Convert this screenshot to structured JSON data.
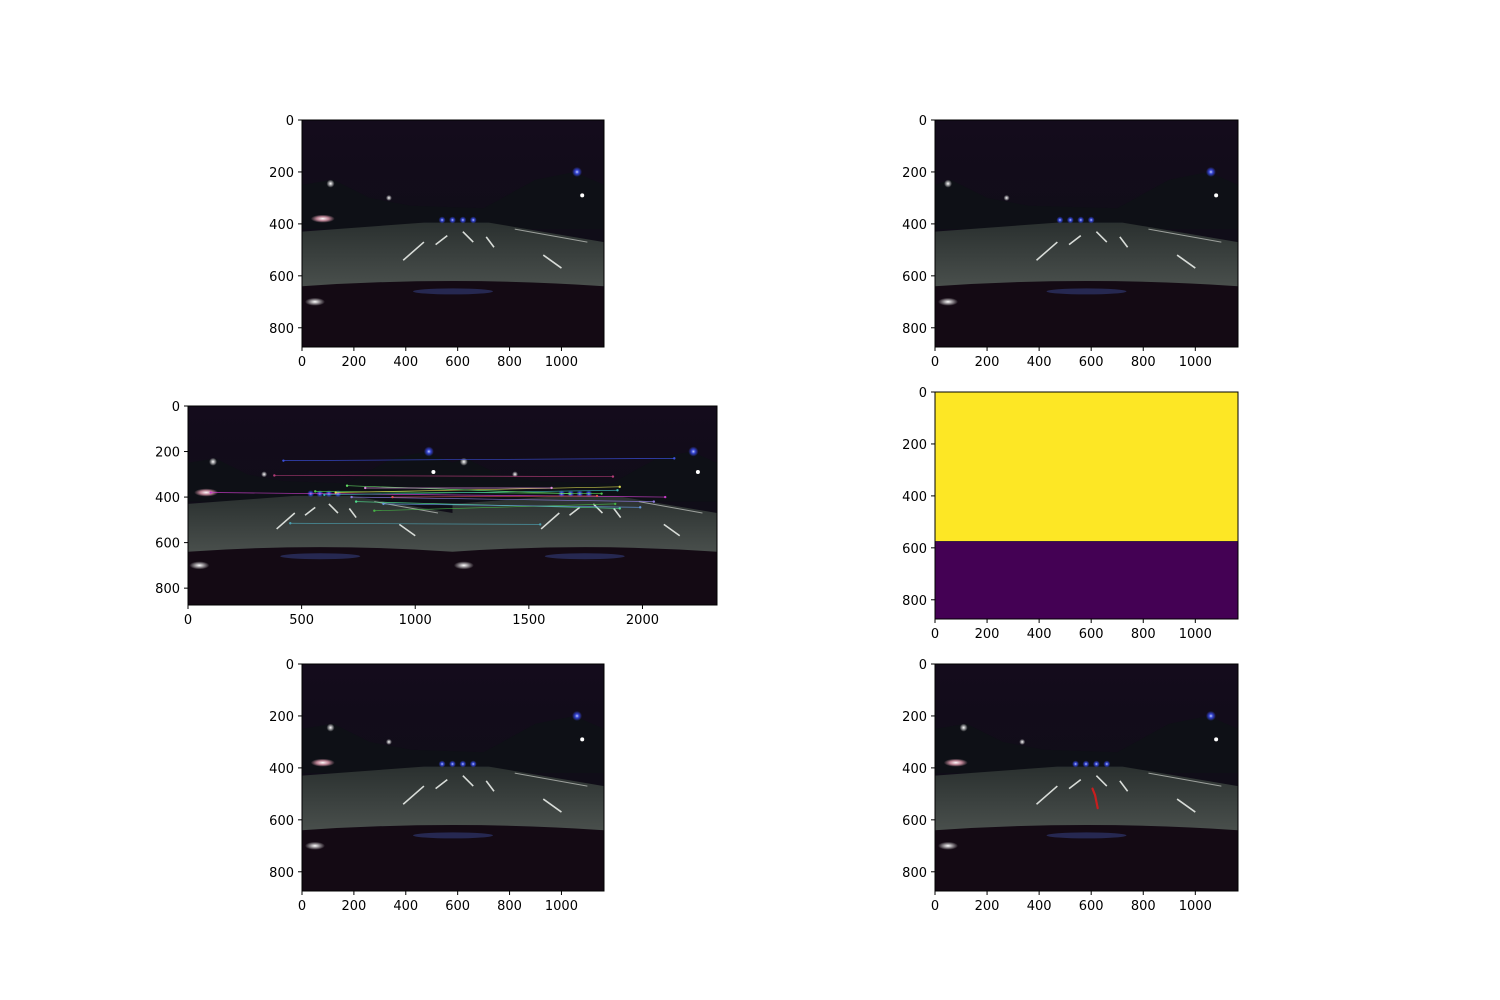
{
  "chart_data": [
    {
      "type": "image",
      "panel": "top-left",
      "image_extent": [
        1164,
        874
      ],
      "x_ticks": [
        0,
        200,
        400,
        600,
        800,
        1000
      ],
      "y_ticks": [
        0,
        200,
        400,
        600,
        800
      ],
      "content": "night-road-frame-a",
      "colors": {
        "sky": "#120c18",
        "road": "#3a3f3e",
        "hood": "#140a14"
      }
    },
    {
      "type": "image",
      "panel": "top-right",
      "image_extent": [
        1164,
        874
      ],
      "x_ticks": [
        0,
        200,
        400,
        600,
        800,
        1000
      ],
      "y_ticks": [
        0,
        200,
        400,
        600,
        800
      ],
      "content": "night-road-frame-b",
      "colors": {
        "sky": "#120c18",
        "road": "#3a3f3e",
        "hood": "#140a14"
      }
    },
    {
      "type": "image",
      "panel": "middle-left",
      "image_extent": [
        2328,
        874
      ],
      "x_ticks": [
        0,
        500,
        1000,
        1500,
        2000
      ],
      "y_ticks": [
        0,
        200,
        400,
        600,
        800
      ],
      "content": "feature-matches-side-by-side",
      "matches": [
        {
          "x1": 100,
          "y1": 380,
          "x2": 2100,
          "y2": 400,
          "color": "#c83cc8"
        },
        {
          "x1": 380,
          "y1": 305,
          "x2": 1870,
          "y2": 310,
          "color": "#b43c78"
        },
        {
          "x1": 420,
          "y1": 240,
          "x2": 2140,
          "y2": 230,
          "color": "#3c50dc"
        },
        {
          "x1": 560,
          "y1": 375,
          "x2": 1820,
          "y2": 385,
          "color": "#50c850"
        },
        {
          "x1": 600,
          "y1": 390,
          "x2": 1890,
          "y2": 370,
          "color": "#3cb4b4"
        },
        {
          "x1": 650,
          "y1": 380,
          "x2": 1900,
          "y2": 355,
          "color": "#dcdc50"
        },
        {
          "x1": 700,
          "y1": 350,
          "x2": 1680,
          "y2": 385,
          "color": "#64dc64"
        },
        {
          "x1": 720,
          "y1": 400,
          "x2": 2050,
          "y2": 420,
          "color": "#8c78dc"
        },
        {
          "x1": 740,
          "y1": 420,
          "x2": 1900,
          "y2": 450,
          "color": "#50dc8c"
        },
        {
          "x1": 780,
          "y1": 360,
          "x2": 1600,
          "y2": 360,
          "color": "#dc8cdc"
        },
        {
          "x1": 820,
          "y1": 460,
          "x2": 1880,
          "y2": 430,
          "color": "#46b446"
        },
        {
          "x1": 860,
          "y1": 430,
          "x2": 1990,
          "y2": 445,
          "color": "#6496dc"
        },
        {
          "x1": 900,
          "y1": 400,
          "x2": 1800,
          "y2": 395,
          "color": "#dc5050"
        },
        {
          "x1": 450,
          "y1": 515,
          "x2": 1550,
          "y2": 520,
          "color": "#4ca0b0"
        }
      ]
    },
    {
      "type": "heatmap",
      "panel": "middle-right",
      "colormap": "viridis",
      "image_extent": [
        1164,
        874
      ],
      "boundary_row": 575,
      "regions": [
        {
          "rows": [
            0,
            575
          ],
          "value": 1,
          "color": "#fde725"
        },
        {
          "rows": [
            575,
            874
          ],
          "value": 0,
          "color": "#440154"
        }
      ],
      "x_ticks": [
        0,
        200,
        400,
        600,
        800,
        1000
      ],
      "y_ticks": [
        0,
        200,
        400,
        600,
        800
      ]
    },
    {
      "type": "image",
      "panel": "bottom-left",
      "image_extent": [
        1164,
        874
      ],
      "x_ticks": [
        0,
        200,
        400,
        600,
        800,
        1000
      ],
      "y_ticks": [
        0,
        200,
        400,
        600,
        800
      ],
      "content": "night-road-frame-c",
      "colors": {
        "sky": "#120c18",
        "road": "#3a3f3e",
        "hood": "#140a14"
      }
    },
    {
      "type": "image",
      "panel": "bottom-right",
      "image_extent": [
        1164,
        874
      ],
      "x_ticks": [
        0,
        200,
        400,
        600,
        800,
        1000
      ],
      "y_ticks": [
        0,
        200,
        400,
        600,
        800
      ],
      "content": "night-road-frame-with-trajectory",
      "colors": {
        "sky": "#120c18",
        "road": "#3a3f3e",
        "hood": "#140a14"
      },
      "trajectory": {
        "color": "#c81e1e",
        "points": [
          [
            605,
            480
          ],
          [
            615,
            505
          ],
          [
            620,
            530
          ],
          [
            625,
            555
          ]
        ]
      }
    }
  ]
}
